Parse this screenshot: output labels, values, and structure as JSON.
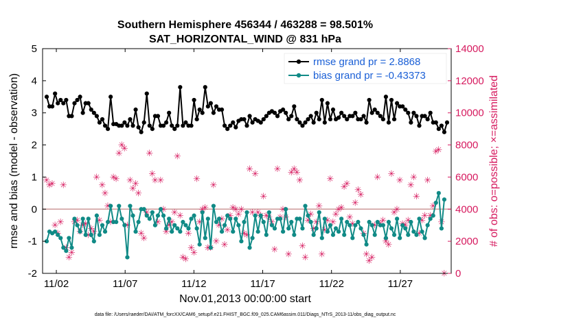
{
  "chart_data": {
    "type": "line",
    "title_line1": "Southern Hemisphere 456344 / 463288 = 98.501%",
    "title_line2": "SAT_HORIZONTAL_WIND @ 831 hPa",
    "xlabel": "Nov.01,2013 00:00:00 start",
    "ylabel_left": "rmse and bias (model - observation)",
    "ylabel_right": "# of obs: o=possible; ×=assimilated",
    "footnote": "data file: /Users/raeder/DAI/ATM_forcXX/CAM6_setup/f.e21.FHIST_BGC.f09_025.CAM6assim.011/Diags_NTrS_2013-11/obs_diag_output.nc",
    "x_range": [
      0.5,
      30.2
    ],
    "xtick_values": [
      1.5,
      6.5,
      11.5,
      16.5,
      21.5,
      26.5
    ],
    "xtick_labels": [
      "11/02",
      "11/07",
      "11/12",
      "11/17",
      "11/22",
      "11/27"
    ],
    "ylim_left": [
      -2,
      5
    ],
    "yticks_left": [
      "-2",
      "-1",
      "0",
      "1",
      "2",
      "3",
      "4",
      "5"
    ],
    "ylim_right": [
      0,
      14000
    ],
    "yticks_right": [
      "0",
      "2000",
      "4000",
      "6000",
      "8000",
      "10000",
      "12000",
      "14000"
    ],
    "zero_line": 0,
    "colors": {
      "rmse": "#000000",
      "bias": "#108a86",
      "obs": "#d6195e",
      "zero": "#cc9999",
      "legend_text": "#1a5fd6"
    },
    "legend": {
      "placement": "top-right",
      "entries": [
        {
          "series": "rmse",
          "label": "rmse grand pr = 2.8868"
        },
        {
          "series": "bias",
          "label": "bias grand pr = -0.43373"
        }
      ]
    },
    "series": [
      {
        "name": "rmse",
        "axis": "left",
        "values": [
          3.5,
          3.2,
          3.2,
          3.6,
          3.3,
          3.4,
          3.3,
          3.4,
          2.9,
          2.9,
          3.3,
          3.4,
          3.5,
          3.0,
          3.3,
          3.3,
          3.1,
          3.0,
          2.9,
          2.7,
          2.8,
          2.6,
          2.5,
          3.5,
          2.65,
          2.65,
          2.6,
          2.6,
          2.7,
          2.6,
          2.8,
          2.6,
          3.1,
          2.55,
          2.4,
          2.7,
          3.6,
          2.6,
          2.5,
          2.9,
          2.9,
          2.6,
          2.6,
          2.7,
          3.0,
          2.6,
          2.5,
          2.6,
          3.8,
          2.6,
          2.7,
          2.6,
          2.6,
          3.4,
          2.8,
          3.1,
          3.0,
          3.8,
          3.2,
          3.3,
          3.0,
          3.2,
          3.1,
          3.1,
          2.6,
          2.5,
          2.6,
          2.7,
          2.55,
          2.75,
          2.8,
          2.8,
          2.6,
          2.9,
          2.7,
          2.8,
          2.75,
          2.7,
          2.8,
          2.9,
          3.0,
          3.05,
          3.0,
          2.9,
          3.05,
          3.1,
          3.0,
          2.8,
          2.9,
          3.2,
          2.8,
          2.7,
          2.6,
          2.7,
          2.8,
          2.9,
          2.7,
          3.0,
          2.8,
          3.4,
          2.7,
          3.3,
          2.8,
          3.1,
          2.8,
          2.85,
          3.0,
          2.9,
          2.8,
          2.9,
          2.9,
          3.0,
          2.8,
          2.8,
          2.9,
          2.7,
          3.4,
          3.0,
          3.1,
          3.0,
          2.9,
          2.8,
          3.5,
          2.7,
          3.4,
          2.8,
          3.3,
          3.2,
          3.2,
          3.1,
          3.0,
          2.7,
          3.0,
          2.9,
          2.6,
          2.9,
          2.9,
          2.8,
          3.0,
          2.7,
          2.7,
          2.5,
          2.6,
          2.4,
          2.7
        ]
      },
      {
        "name": "bias",
        "axis": "left",
        "values": [
          -1.0,
          -0.7,
          -0.75,
          -0.7,
          -0.8,
          -0.9,
          -1.2,
          -1.3,
          -0.9,
          -1.2,
          -0.3,
          -0.5,
          -0.7,
          -0.3,
          -0.8,
          -0.3,
          -0.8,
          -1.0,
          -0.2,
          -0.8,
          -0.5,
          -0.7,
          -0.4,
          0.1,
          -0.4,
          -0.4,
          0.1,
          -0.3,
          -0.5,
          -1.5,
          0.1,
          -0.2,
          -0.7,
          -0.4,
          0.0,
          0.0,
          -0.2,
          -0.3,
          -0.1,
          -0.5,
          -0.2,
          0.0,
          -0.2,
          -0.6,
          -0.3,
          -0.7,
          -0.5,
          -0.6,
          -0.7,
          -0.4,
          -0.5,
          -0.6,
          -0.3,
          -0.2,
          -0.6,
          -1.1,
          -0.1,
          -0.9,
          -0.3,
          -1.2,
          0.1,
          -0.4,
          -0.3,
          -0.7,
          -0.5,
          -0.2,
          -0.3,
          -0.7,
          -0.3,
          -0.5,
          -1.0,
          -0.4,
          -0.1,
          -1.2,
          -0.9,
          -0.2,
          -0.7,
          -0.2,
          -0.4,
          -0.8,
          -0.1,
          -0.5,
          -0.6,
          -0.3,
          -0.3,
          -0.7,
          0.0,
          -0.6,
          -0.4,
          -0.8,
          -0.3,
          -0.3,
          -0.6,
          0.1,
          -0.2,
          -0.4,
          -0.8,
          -0.6,
          -0.1,
          -0.9,
          -0.3,
          -0.7,
          -0.5,
          -0.8,
          -0.6,
          -0.7,
          -0.3,
          -0.8,
          -0.4,
          -0.5,
          -0.9,
          -0.5,
          -0.4,
          -0.6,
          -0.8,
          -1.1,
          -0.4,
          -0.5,
          -0.8,
          -0.4,
          -0.5,
          -0.5,
          -0.9,
          -0.4,
          -0.6,
          -0.8,
          -0.3,
          -0.9,
          -0.5,
          -0.6,
          -0.8,
          -0.4,
          -0.7,
          -0.8,
          -0.3,
          -0.7,
          -0.9,
          -0.5,
          -0.3,
          -0.2,
          0.2,
          0.5,
          -0.6,
          0.3
        ]
      },
      {
        "name": "obs",
        "axis": "right",
        "values": [
          5800,
          5500,
          5600,
          3000,
          2500,
          3200,
          5500,
          1600,
          1000,
          1300,
          3200,
          3300,
          2600,
          3000,
          3100,
          2400,
          2800,
          2600,
          6000,
          3300,
          5500,
          5000,
          4200,
          3200,
          6000,
          5900,
          7500,
          8000,
          7800,
          3000,
          5800,
          5300,
          5600,
          5000,
          2500,
          2200,
          3800,
          7500,
          6200,
          5800,
          3200,
          5800,
          4000,
          2600,
          3000,
          3200,
          3800,
          7300,
          3600,
          1000,
          900,
          2500,
          1600,
          1300,
          5900,
          3200,
          4000,
          4100,
          1600,
          1600,
          5500,
          2000,
          3000,
          3400,
          1800,
          2700,
          3600,
          4100,
          4000,
          3700,
          4000,
          2500,
          2400,
          6500,
          3800,
          6200,
          3800,
          3600,
          4800,
          3600,
          3500,
          3200,
          1500,
          6500,
          3500,
          4000,
          3500,
          1200,
          6300,
          6500,
          6300,
          5800,
          1700,
          1000,
          3300,
          3700,
          2800,
          3200,
          4200,
          1200,
          2700,
          3300,
          5900,
          3200,
          3700,
          4000,
          4100,
          5400,
          5600,
          3500,
          3100,
          4400,
          5200,
          4900,
          2500,
          1200,
          800,
          1000,
          3000,
          6000,
          3100,
          3300,
          2000,
          1800,
          6200,
          3800,
          4000,
          5800,
          3100,
          3000,
          3300,
          5500,
          6000,
          4800,
          2500,
          3300,
          3600,
          5800,
          3600,
          4200,
          7600,
          7700,
          3200,
          0
        ]
      }
    ]
  }
}
